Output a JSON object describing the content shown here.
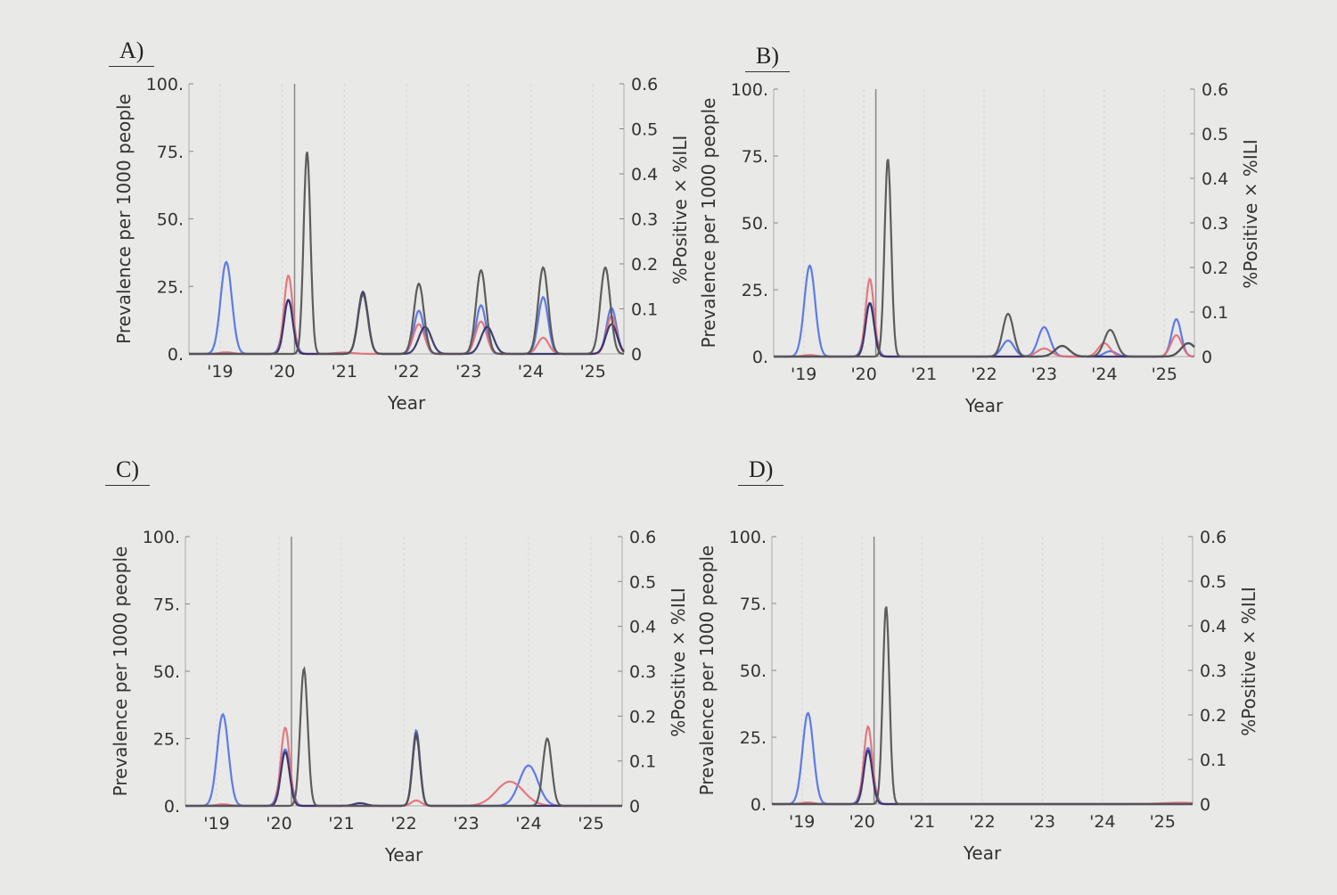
{
  "chart_data": [
    {
      "panel": "A)",
      "type": "line",
      "xlabel": "Year",
      "ylabel": "Prevalence per 1000 people",
      "y2label": "%Positive × %ILI",
      "x_ticks": [
        "'19",
        "'20",
        "'21",
        "'22",
        "'23",
        "'24",
        "'25"
      ],
      "y_ticks": [
        "0.",
        "25.",
        "50.",
        "75.",
        "100."
      ],
      "y2_ticks": [
        "0",
        "0.1",
        "0.2",
        "0.3",
        "0.4",
        "0.5",
        "0.6"
      ],
      "xlim": [
        2018.5,
        2025.5
      ],
      "ylim": [
        0,
        100
      ],
      "y2lim": [
        0,
        0.6
      ],
      "vline": 2020.2,
      "colors": {
        "blue": "#4f6fe6",
        "red": "#e36b74",
        "dark": "#2e2c66",
        "gray": "#555555"
      },
      "series": [
        {
          "color": "blue",
          "peaks": [
            [
              2019.1,
              34,
              0.09
            ],
            [
              2020.1,
              20,
              0.08
            ],
            [
              2021.3,
              22,
              0.08
            ],
            [
              2022.2,
              16,
              0.08
            ],
            [
              2023.2,
              18,
              0.08
            ],
            [
              2024.2,
              21,
              0.08
            ],
            [
              2025.3,
              17,
              0.08
            ]
          ]
        },
        {
          "color": "red",
          "peaks": [
            [
              2019.1,
              0.6,
              0.1
            ],
            [
              2020.1,
              29,
              0.07
            ],
            [
              2021.0,
              0.5,
              0.15
            ],
            [
              2022.2,
              11,
              0.09
            ],
            [
              2023.2,
              12,
              0.09
            ],
            [
              2024.2,
              6,
              0.09
            ],
            [
              2025.3,
              14,
              0.08
            ]
          ]
        },
        {
          "color": "dark",
          "peaks": [
            [
              2020.1,
              20,
              0.07
            ],
            [
              2021.3,
              23,
              0.08
            ],
            [
              2022.3,
              10,
              0.1
            ],
            [
              2023.3,
              10,
              0.1
            ],
            [
              2025.3,
              11,
              0.09
            ]
          ]
        },
        {
          "color": "gray",
          "peaks": [
            [
              2020.4,
              75,
              0.055
            ],
            [
              2021.3,
              22,
              0.08
            ],
            [
              2022.2,
              26,
              0.08
            ],
            [
              2023.2,
              31,
              0.08
            ],
            [
              2024.2,
              32,
              0.08
            ],
            [
              2025.2,
              32,
              0.08
            ]
          ]
        }
      ]
    },
    {
      "panel": "B)",
      "type": "line",
      "xlabel": "Year",
      "ylabel": "Prevalence per 1000 people",
      "y2label": "%Positive × %ILI",
      "x_ticks": [
        "'19",
        "'20",
        "'21",
        "'22",
        "'23",
        "'24",
        "'25"
      ],
      "y_ticks": [
        "0.",
        "25.",
        "50.",
        "75.",
        "100."
      ],
      "y2_ticks": [
        "0",
        "0.1",
        "0.2",
        "0.3",
        "0.4",
        "0.5",
        "0.6"
      ],
      "xlim": [
        2018.5,
        2025.5
      ],
      "ylim": [
        0,
        100
      ],
      "y2lim": [
        0,
        0.6
      ],
      "vline": 2020.2,
      "colors": {
        "blue": "#4f6fe6",
        "red": "#e36b74",
        "dark": "#2e2c66",
        "gray": "#555555"
      },
      "series": [
        {
          "color": "blue",
          "peaks": [
            [
              2019.1,
              34,
              0.09
            ],
            [
              2020.1,
              20,
              0.08
            ],
            [
              2022.4,
              6,
              0.1
            ],
            [
              2023.0,
              11,
              0.1
            ],
            [
              2024.1,
              2,
              0.1
            ],
            [
              2025.2,
              14,
              0.08
            ]
          ]
        },
        {
          "color": "red",
          "peaks": [
            [
              2019.1,
              0.6,
              0.1
            ],
            [
              2020.1,
              29,
              0.07
            ],
            [
              2023.0,
              3,
              0.12
            ],
            [
              2024.0,
              5,
              0.1
            ],
            [
              2025.2,
              8,
              0.09
            ]
          ]
        },
        {
          "color": "dark",
          "peaks": [
            [
              2020.1,
              20,
              0.07
            ],
            [
              2023.3,
              4,
              0.12
            ],
            [
              2025.4,
              5,
              0.12
            ]
          ]
        },
        {
          "color": "gray",
          "peaks": [
            [
              2020.4,
              74,
              0.055
            ],
            [
              2022.4,
              16,
              0.09
            ],
            [
              2023.3,
              4,
              0.12
            ],
            [
              2024.1,
              10,
              0.1
            ],
            [
              2025.4,
              5,
              0.12
            ]
          ]
        }
      ]
    },
    {
      "panel": "C)",
      "type": "line",
      "xlabel": "Year",
      "ylabel": "Prevalence per 1000 people",
      "y2label": "%Positive × %ILI",
      "x_ticks": [
        "'19",
        "'20",
        "'21",
        "'22",
        "'23",
        "'24",
        "'25"
      ],
      "y_ticks": [
        "0.",
        "25.",
        "50.",
        "75.",
        "100."
      ],
      "y2_ticks": [
        "0",
        "0.1",
        "0.2",
        "0.3",
        "0.4",
        "0.5",
        "0.6"
      ],
      "xlim": [
        2018.5,
        2025.5
      ],
      "ylim": [
        0,
        100
      ],
      "y2lim": [
        0,
        0.6
      ],
      "vline": 2020.2,
      "colors": {
        "blue": "#4f6fe6",
        "red": "#e36b74",
        "dark": "#2e2c66",
        "gray": "#555555"
      },
      "series": [
        {
          "color": "blue",
          "peaks": [
            [
              2019.1,
              34,
              0.09
            ],
            [
              2020.1,
              21,
              0.08
            ],
            [
              2022.2,
              28,
              0.06
            ],
            [
              2024.0,
              15,
              0.15
            ]
          ]
        },
        {
          "color": "red",
          "peaks": [
            [
              2019.1,
              0.6,
              0.1
            ],
            [
              2020.1,
              29,
              0.07
            ],
            [
              2022.2,
              2,
              0.08
            ],
            [
              2023.7,
              9,
              0.22
            ]
          ]
        },
        {
          "color": "dark",
          "peaks": [
            [
              2020.1,
              20,
              0.07
            ],
            [
              2021.3,
              1,
              0.1
            ],
            [
              2022.2,
              26,
              0.06
            ]
          ]
        },
        {
          "color": "gray",
          "peaks": [
            [
              2020.4,
              51,
              0.06
            ],
            [
              2022.2,
              27,
              0.06
            ],
            [
              2024.3,
              25,
              0.07
            ]
          ]
        }
      ]
    },
    {
      "panel": "D)",
      "type": "line",
      "xlabel": "Year",
      "ylabel": "Prevalence per 1000 people",
      "y2label": "%Positive × %ILI",
      "x_ticks": [
        "'19",
        "'20",
        "'21",
        "'22",
        "'23",
        "'24",
        "'25"
      ],
      "y_ticks": [
        "0.",
        "25.",
        "50.",
        "75.",
        "100."
      ],
      "y2_ticks": [
        "0",
        "0.1",
        "0.2",
        "0.3",
        "0.4",
        "0.5",
        "0.6"
      ],
      "xlim": [
        2018.5,
        2025.5
      ],
      "ylim": [
        0,
        100
      ],
      "y2lim": [
        0,
        0.6
      ],
      "vline": 2020.2,
      "colors": {
        "blue": "#4f6fe6",
        "red": "#e36b74",
        "dark": "#2e2c66",
        "gray": "#555555"
      },
      "series": [
        {
          "color": "blue",
          "peaks": [
            [
              2019.1,
              34,
              0.09
            ],
            [
              2020.1,
              21,
              0.08
            ]
          ]
        },
        {
          "color": "red",
          "peaks": [
            [
              2019.1,
              0.6,
              0.1
            ],
            [
              2020.1,
              29,
              0.07
            ],
            [
              2025.3,
              0.5,
              0.3
            ]
          ]
        },
        {
          "color": "dark",
          "peaks": [
            [
              2020.1,
              20,
              0.07
            ]
          ]
        },
        {
          "color": "gray",
          "peaks": [
            [
              2020.4,
              74,
              0.055
            ]
          ]
        }
      ]
    }
  ]
}
